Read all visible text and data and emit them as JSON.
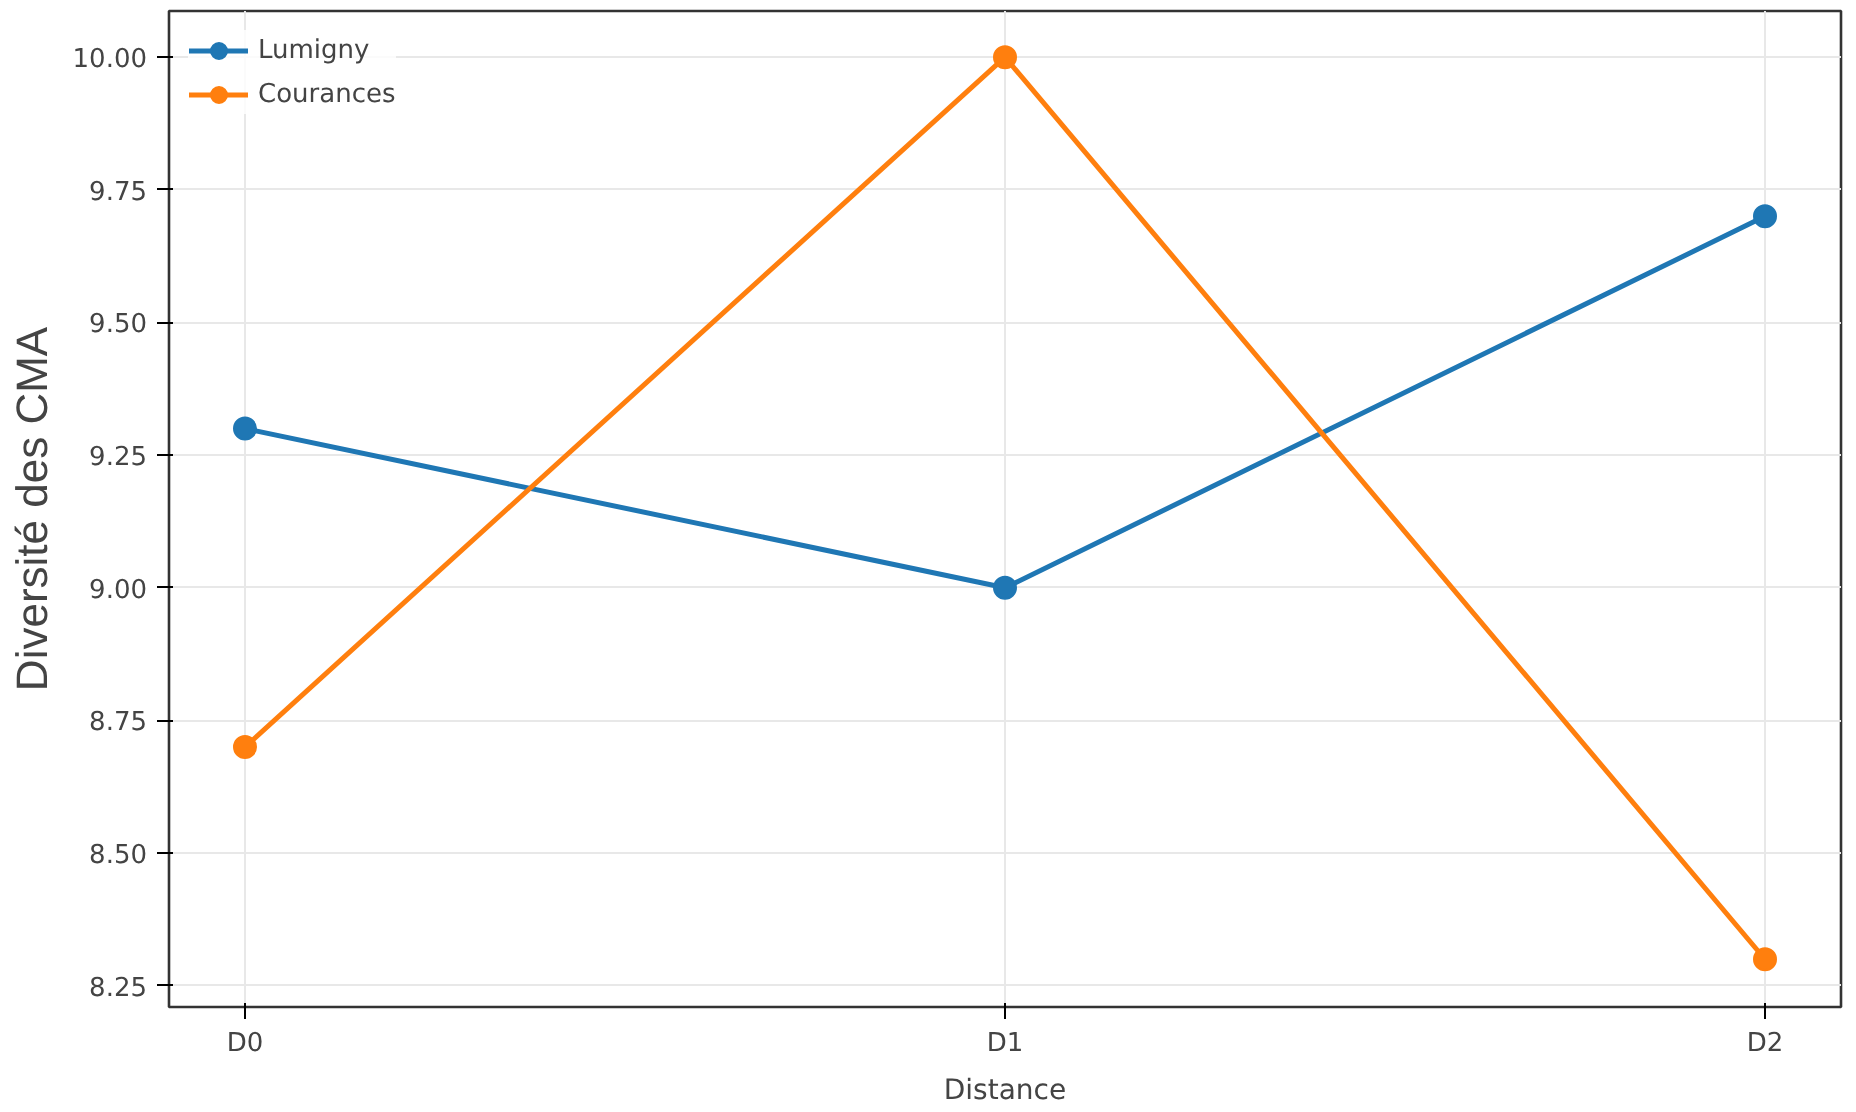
{
  "chart_data": {
    "type": "line",
    "xlabel": "Distance",
    "ylabel": "Diversité des CMA",
    "categories": [
      "D0",
      "D1",
      "D2"
    ],
    "series": [
      {
        "name": "Lumigny",
        "color": "#1f77b4",
        "values": [
          9.3,
          9.0,
          9.7
        ]
      },
      {
        "name": "Courances",
        "color": "#ff7f0e",
        "values": [
          8.7,
          10.0,
          8.3
        ]
      }
    ],
    "ylim": [
      8.21,
      10.087
    ],
    "yticks": [
      {
        "value": 8.25,
        "label": "8.25"
      },
      {
        "value": 8.5,
        "label": "8.50"
      },
      {
        "value": 8.75,
        "label": "8.75"
      },
      {
        "value": 9.0,
        "label": "9.00"
      },
      {
        "value": 9.25,
        "label": "9.25"
      },
      {
        "value": 9.5,
        "label": "9.50"
      },
      {
        "value": 9.75,
        "label": "9.75"
      },
      {
        "value": 10.0,
        "label": "10.00"
      }
    ],
    "grid": true,
    "legend": "top left",
    "marker": "circle",
    "line_style": "solid"
  }
}
